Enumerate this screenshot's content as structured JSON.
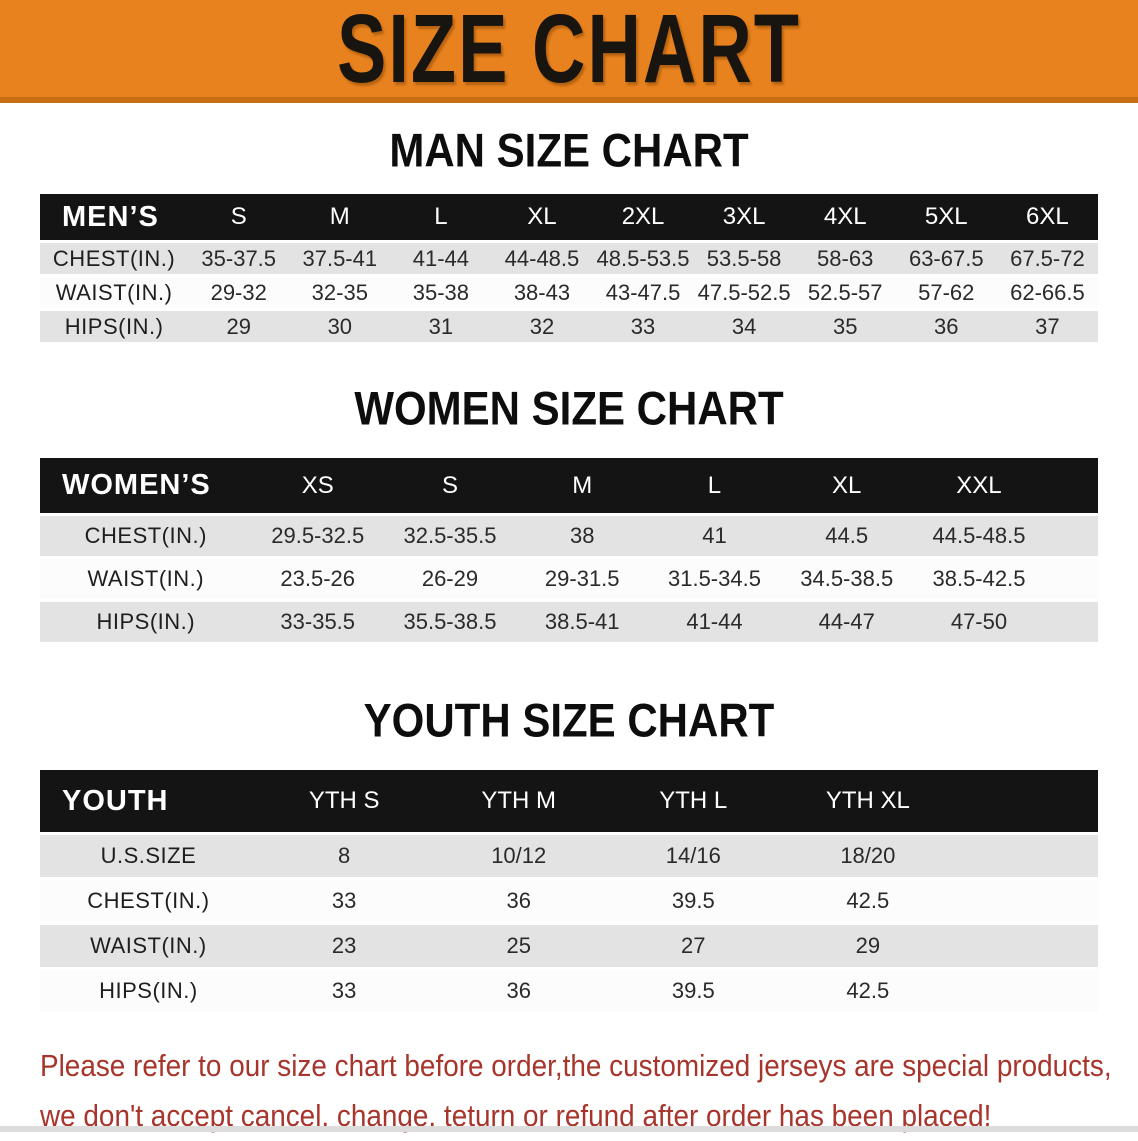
{
  "banner": {
    "title": "SIZE CHART",
    "bg_color": "#E8821E"
  },
  "sections": [
    {
      "title": "MAN SIZE CHART",
      "header_label": "MEN’S",
      "columns": [
        "S",
        "M",
        "L",
        "XL",
        "2XL",
        "3XL",
        "4XL",
        "5XL",
        "6XL"
      ],
      "rows": [
        {
          "label": "CHEST(IN.)",
          "values": [
            "35-37.5",
            "37.5-41",
            "41-44",
            "44-48.5",
            "48.5-53.5",
            "53.5-58",
            "58-63",
            "63-67.5",
            "67.5-72"
          ]
        },
        {
          "label": "WAIST(IN.)",
          "values": [
            "29-32",
            "32-35",
            "35-38",
            "38-43",
            "43-47.5",
            "47.5-52.5",
            "52.5-57",
            "57-62",
            "62-66.5"
          ]
        },
        {
          "label": "HIPS(IN.)",
          "values": [
            "29",
            "30",
            "31",
            "32",
            "33",
            "34",
            "35",
            "36",
            "37"
          ]
        }
      ]
    },
    {
      "title": "WOMEN SIZE CHART",
      "header_label": "WOMEN’S",
      "columns": [
        "XS",
        "S",
        "M",
        "L",
        "XL",
        "XXL"
      ],
      "rows": [
        {
          "label": "CHEST(IN.)",
          "values": [
            "29.5-32.5",
            "32.5-35.5",
            "38",
            "41",
            "44.5",
            "44.5-48.5"
          ]
        },
        {
          "label": "WAIST(IN.)",
          "values": [
            "23.5-26",
            "26-29",
            "29-31.5",
            "31.5-34.5",
            "34.5-38.5",
            "38.5-42.5"
          ]
        },
        {
          "label": "HIPS(IN.)",
          "values": [
            "33-35.5",
            "35.5-38.5",
            "38.5-41",
            "41-44",
            "44-47",
            "47-50"
          ]
        }
      ]
    },
    {
      "title": "YOUTH SIZE CHART",
      "header_label": "YOUTH",
      "columns": [
        "YTH S",
        "YTH M",
        "YTH L",
        "YTH XL"
      ],
      "rows": [
        {
          "label": "U.S.SIZE",
          "values": [
            "8",
            "10/12",
            "14/16",
            "18/20"
          ]
        },
        {
          "label": "CHEST(IN.)",
          "values": [
            "33",
            "36",
            "39.5",
            "42.5"
          ]
        },
        {
          "label": "WAIST(IN.)",
          "values": [
            "23",
            "25",
            "27",
            "29"
          ]
        },
        {
          "label": "HIPS(IN.)",
          "values": [
            "33",
            "36",
            "39.5",
            "42.5"
          ]
        }
      ]
    }
  ],
  "disclaimer": {
    "line1": "Please refer to our size chart before order,the customized jerseys are special products,",
    "line2": "we don't accept cancel, change, teturn or refund after order has been placed!",
    "color": "#A8352C"
  }
}
